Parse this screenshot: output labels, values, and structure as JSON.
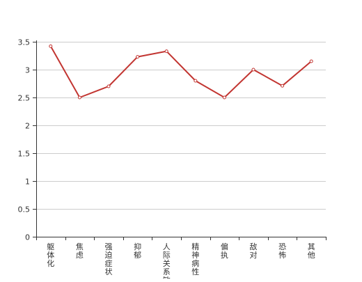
{
  "chart_data": {
    "type": "line",
    "title": "",
    "xlabel": "",
    "ylabel": "",
    "categories": [
      "躯体化",
      "焦虑",
      "强迫症状",
      "抑郁",
      "人际关系敏感",
      "精神病性",
      "偏执",
      "敌对",
      "恐怖",
      "其他"
    ],
    "series": [
      {
        "values": [
          3.42,
          2.5,
          2.7,
          3.23,
          3.33,
          2.8,
          2.5,
          3.0,
          2.71,
          3.15
        ]
      }
    ],
    "y_ticks": [
      "0",
      "0.5",
      "1",
      "1.5",
      "2",
      "2.5",
      "3",
      "3.5"
    ],
    "ylim": [
      0,
      3.5
    ],
    "grid": "horizontal",
    "legend": "none",
    "colors": {
      "line": "#c23531",
      "grid": "#cccccc",
      "axis": "#333333",
      "text": "#333333"
    }
  }
}
